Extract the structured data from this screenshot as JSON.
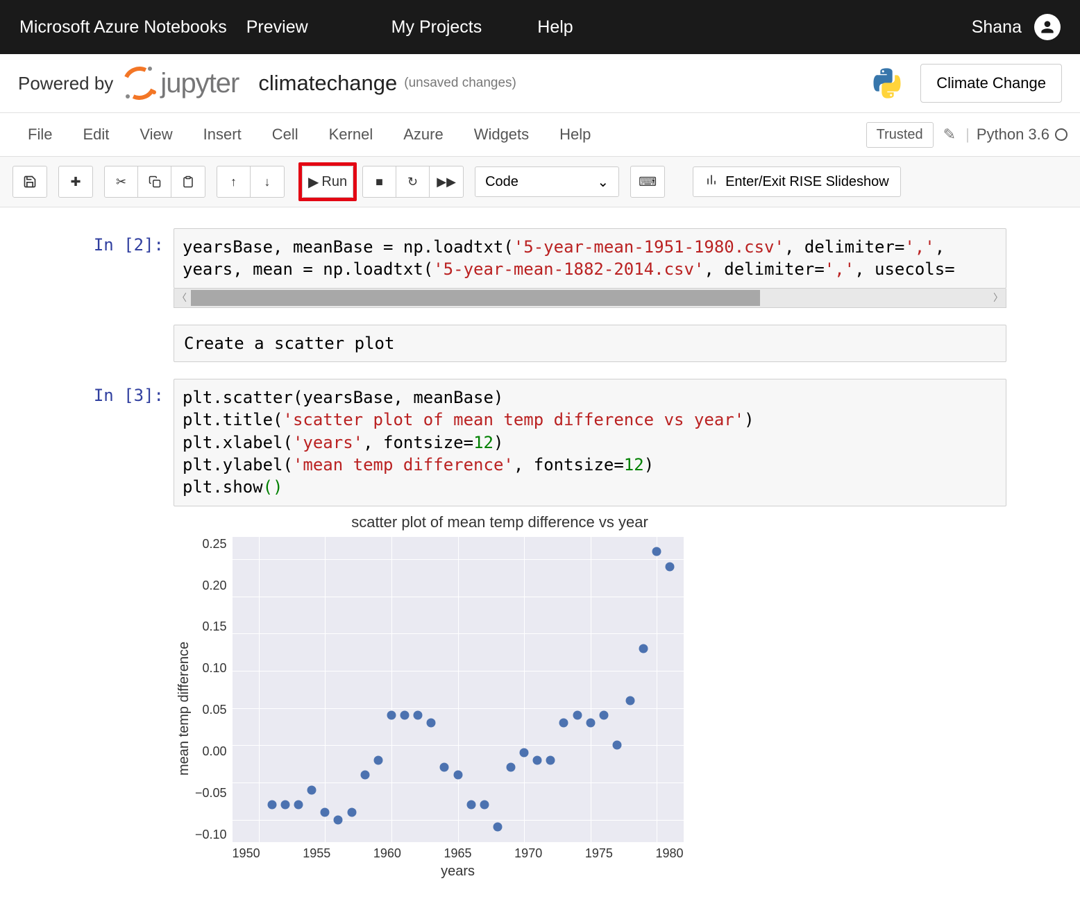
{
  "azure": {
    "brand": "Microsoft Azure Notebooks",
    "preview": "Preview",
    "nav": {
      "projects": "My Projects",
      "help": "Help"
    },
    "user": "Shana"
  },
  "header": {
    "powered": "Powered by",
    "jupyter": "jupyter",
    "title": "climatechange",
    "unsaved": "(unsaved changes)",
    "climate_btn": "Climate Change"
  },
  "menubar": {
    "items": [
      "File",
      "Edit",
      "View",
      "Insert",
      "Cell",
      "Kernel",
      "Azure",
      "Widgets",
      "Help"
    ],
    "trusted": "Trusted",
    "kernel": "Python 3.6"
  },
  "toolbar": {
    "run": "Run",
    "cell_type": "Code",
    "rise": "Enter/Exit RISE Slideshow"
  },
  "cells": {
    "c1": {
      "prompt": "In [2]:",
      "tokens": {
        "l1a": "yearsBase, meanBase = np.loadtxt(",
        "l1s": "'5-year-mean-1951-1980.csv'",
        "l1b": ", delimiter=",
        "l1s2": "','",
        "l1c": ",",
        "l2a": "years, mean = np.loadtxt(",
        "l2s": "'5-year-mean-1882-2014.csv'",
        "l2b": ", delimiter=",
        "l2s2": "','",
        "l2c": ", usecols="
      }
    },
    "md": {
      "text": "Create a scatter plot"
    },
    "c2": {
      "prompt": "In [3]:",
      "tokens": {
        "l1": "plt.scatter(yearsBase, meanBase)",
        "l2a": "plt.title(",
        "l2s": "'scatter plot of mean temp difference vs year'",
        "l2b": ")",
        "l3a": "plt.xlabel(",
        "l3s": "'years'",
        "l3b": ", fontsize=",
        "l3n": "12",
        "l3c": ")",
        "l4a": "plt.ylabel(",
        "l4s": "'mean temp difference'",
        "l4b": ", fontsize=",
        "l4n": "12",
        "l4c": ")",
        "l5a": "plt.show",
        "l5b": "()"
      }
    }
  },
  "chart": {
    "type": "scatter",
    "title": "scatter plot of mean temp difference vs year",
    "xlabel": "years",
    "ylabel": "mean temp difference",
    "xlim": [
      1948,
      1982
    ],
    "ylim": [
      -0.13,
      0.28
    ],
    "xticks": [
      1950,
      1955,
      1960,
      1965,
      1970,
      1975,
      1980
    ],
    "yticks": [
      -0.1,
      -0.05,
      0.0,
      0.05,
      0.1,
      0.15,
      0.2,
      0.25
    ],
    "ytick_labels": [
      "−0.10",
      "−0.05",
      "0.00",
      "0.05",
      "0.10",
      "0.15",
      "0.20",
      "0.25"
    ],
    "point_color": "#4c72b0",
    "background_color": "#eaeaf2",
    "grid_color": "#ffffff",
    "title_fontsize": 22,
    "label_fontsize": 20,
    "marker_size": 13,
    "data": [
      {
        "x": 1951,
        "y": -0.08
      },
      {
        "x": 1952,
        "y": -0.08
      },
      {
        "x": 1953,
        "y": -0.08
      },
      {
        "x": 1954,
        "y": -0.06
      },
      {
        "x": 1955,
        "y": -0.09
      },
      {
        "x": 1956,
        "y": -0.1
      },
      {
        "x": 1957,
        "y": -0.09
      },
      {
        "x": 1958,
        "y": -0.04
      },
      {
        "x": 1959,
        "y": -0.02
      },
      {
        "x": 1960,
        "y": 0.04
      },
      {
        "x": 1961,
        "y": 0.04
      },
      {
        "x": 1962,
        "y": 0.04
      },
      {
        "x": 1963,
        "y": 0.03
      },
      {
        "x": 1964,
        "y": -0.03
      },
      {
        "x": 1965,
        "y": -0.04
      },
      {
        "x": 1966,
        "y": -0.08
      },
      {
        "x": 1967,
        "y": -0.08
      },
      {
        "x": 1968,
        "y": -0.11
      },
      {
        "x": 1969,
        "y": -0.03
      },
      {
        "x": 1970,
        "y": -0.01
      },
      {
        "x": 1971,
        "y": -0.02
      },
      {
        "x": 1972,
        "y": -0.02
      },
      {
        "x": 1973,
        "y": 0.03
      },
      {
        "x": 1974,
        "y": 0.04
      },
      {
        "x": 1975,
        "y": 0.03
      },
      {
        "x": 1976,
        "y": 0.04
      },
      {
        "x": 1977,
        "y": 0.0
      },
      {
        "x": 1978,
        "y": 0.06
      },
      {
        "x": 1979,
        "y": 0.13
      },
      {
        "x": 1980,
        "y": 0.26
      },
      {
        "x": 1981,
        "y": 0.24
      }
    ]
  }
}
